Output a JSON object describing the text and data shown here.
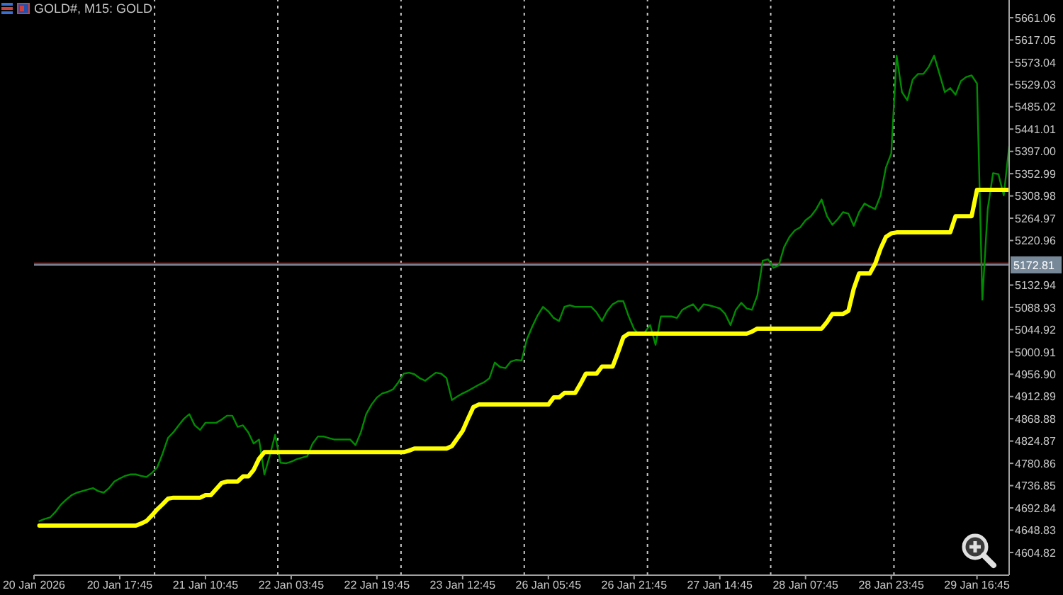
{
  "chart_data": {
    "type": "line",
    "title": "GOLD#, M15: GOLD",
    "categories": [
      "20 Jan 2026",
      null,
      null,
      null,
      null,
      null,
      null,
      null,
      null,
      null,
      null,
      null,
      null,
      null,
      null,
      null,
      "20 Jan 17:45",
      null,
      null,
      null,
      null,
      null,
      null,
      null,
      null,
      null,
      null,
      null,
      null,
      null,
      null,
      null,
      "21 Jan 10:45",
      null,
      null,
      null,
      null,
      null,
      null,
      null,
      null,
      null,
      null,
      null,
      null,
      null,
      null,
      null,
      "22 Jan 03:45",
      null,
      null,
      null,
      null,
      null,
      null,
      null,
      null,
      null,
      null,
      null,
      null,
      null,
      null,
      null,
      "22 Jan 19:45",
      null,
      null,
      null,
      null,
      null,
      null,
      null,
      null,
      null,
      null,
      null,
      null,
      null,
      null,
      null,
      "23 Jan 12:45",
      null,
      null,
      null,
      null,
      null,
      null,
      null,
      null,
      null,
      null,
      null,
      null,
      null,
      null,
      null,
      "26 Jan 05:45",
      null,
      null,
      null,
      null,
      null,
      null,
      null,
      null,
      null,
      null,
      null,
      null,
      null,
      null,
      null,
      "26 Jan 21:45",
      null,
      null,
      null,
      null,
      null,
      null,
      null,
      null,
      null,
      null,
      null,
      null,
      null,
      null,
      null,
      "27 Jan 14:45",
      null,
      null,
      null,
      null,
      null,
      null,
      null,
      null,
      null,
      null,
      null,
      null,
      null,
      null,
      null,
      "28 Jan 07:45",
      null,
      null,
      null,
      null,
      null,
      null,
      null,
      null,
      null,
      null,
      null,
      null,
      null,
      null,
      null,
      "28 Jan 23:45",
      null,
      null,
      null,
      null,
      null,
      null,
      null,
      null,
      null,
      null,
      null,
      null,
      null,
      null,
      null,
      "29 Jan 16:45",
      null,
      null,
      null,
      null,
      null,
      null
    ],
    "ylim": [
      4560,
      5696
    ],
    "yticks": [
      5661.06,
      5617.05,
      5573.04,
      5529.03,
      5485.02,
      5441.01,
      {
        "value": 5397,
        "label": "5397.00"
      },
      5352.99,
      5308.98,
      5264.97,
      5220.96,
      5132.94,
      5088.93,
      5044.92,
      5000.91,
      {
        "value": 4956.9,
        "label": "4956.90"
      },
      4912.89,
      4868.88,
      4824.87,
      4780.86,
      4736.85,
      4692.84,
      4648.83,
      4604.82
    ],
    "series": [
      {
        "color": "#008c00",
        "values": [
          null,
          4667,
          4671,
          4674,
          4685,
          4699,
          4709,
          4718,
          4723,
          4726,
          4729,
          4732,
          4726,
          4723,
          4732,
          4745,
          4751,
          4756,
          4759,
          4759,
          4756,
          4754,
          4762,
          4773,
          4800,
          4831,
          4842,
          4856,
          4869,
          4878,
          4856,
          4847,
          4861,
          4861,
          4861,
          4867,
          4875,
          4875,
          4853,
          4856,
          4842,
          4820,
          4828,
          4759,
          4796,
          4837,
          4782,
          4781,
          4784,
          4789,
          4792,
          4795,
          4820,
          4834,
          4834,
          4831,
          4828,
          4828,
          4828,
          4828,
          4817,
          4842,
          4878,
          4897,
          4911,
          4919,
          4922,
          4927,
          4941,
          4958,
          4960,
          4957,
          4949,
          4944,
          4952,
          4960,
          4958,
          4949,
          4906,
          4913,
          4919,
          4924,
          4930,
          4936,
          4941,
          4949,
          4980,
          4971,
          4969,
          4982,
          4985,
          4984,
          5026,
          5051,
          5073,
          5090,
          5081,
          5068,
          5062,
          5090,
          5093,
          5090,
          5090,
          5090,
          5090,
          5079,
          5062,
          5082,
          5095,
          5101,
          5101,
          5071,
          5046,
          5035,
          5040,
          5054,
          5015,
          5071,
          5071,
          5071,
          5068,
          5084,
          5090,
          5095,
          5082,
          5095,
          5093,
          5090,
          5087,
          5076,
          5054,
          5084,
          5098,
          5087,
          5084,
          5112,
          5181,
          5184,
          5167,
          5172,
          5208,
          5228,
          5241,
          5247,
          5261,
          5269,
          5283,
          5302,
          5269,
          5252,
          5263,
          5277,
          5274,
          5250,
          5277,
          5294,
          5288,
          5283,
          5310,
          5365,
          5393,
          5586,
          5514,
          5498,
          5539,
          5550,
          5550,
          5564,
          5586,
          5550,
          5514,
          5522,
          5509,
          5536,
          5544,
          5547,
          5531,
          5104,
          5283,
          5354,
          5352,
          5310,
          5407
        ]
      },
      {
        "color": "#ffff00",
        "values": [
          null,
          4658,
          4658,
          4658,
          4658,
          4658,
          4658,
          4658,
          4658,
          4658,
          4658,
          4658,
          4658,
          4658,
          4658,
          4658,
          4658,
          4658,
          4658,
          4658,
          4662,
          4667,
          4678,
          4690,
          4700,
          4711,
          4713,
          4713,
          4713,
          4713,
          4713,
          4713,
          4718,
          4718,
          4730,
          4742,
          4745,
          4745,
          4745,
          4755,
          4755,
          4768,
          4790,
          4803,
          4803,
          4803,
          4803,
          4803,
          4803,
          4803,
          4803,
          4803,
          4803,
          4803,
          4803,
          4803,
          4803,
          4803,
          4803,
          4803,
          4803,
          4803,
          4803,
          4803,
          4803,
          4803,
          4803,
          4803,
          4803,
          4803,
          4806,
          4810,
          4810,
          4810,
          4810,
          4810,
          4810,
          4810,
          4815,
          4830,
          4845,
          4869,
          4892,
          4897,
          4897,
          4897,
          4897,
          4897,
          4897,
          4897,
          4897,
          4897,
          4897,
          4897,
          4897,
          4897,
          4897,
          4911,
          4911,
          4920,
          4920,
          4920,
          4938,
          4958,
          4958,
          4958,
          4972,
          4972,
          4972,
          5000,
          5030,
          5037,
          5037,
          5037,
          5037,
          5037,
          5037,
          5037,
          5037,
          5037,
          5037,
          5037,
          5037,
          5037,
          5037,
          5037,
          5037,
          5037,
          5037,
          5037,
          5037,
          5037,
          5037,
          5037,
          5041,
          5047,
          5047,
          5047,
          5047,
          5047,
          5047,
          5047,
          5047,
          5047,
          5047,
          5047,
          5047,
          5047,
          5060,
          5076,
          5076,
          5076,
          5082,
          5126,
          5156,
          5156,
          5156,
          5175,
          5205,
          5228,
          5235,
          5237,
          5237,
          5237,
          5237,
          5237,
          5237,
          5237,
          5237,
          5237,
          5237,
          5237,
          5269,
          5269,
          5269,
          5269,
          5321,
          5321,
          5321,
          5321,
          5321,
          5321,
          5321
        ]
      }
    ],
    "ref_lines": [
      {
        "axis": "y",
        "value": 5176,
        "color": "#b22222",
        "line_style": "solid"
      },
      {
        "axis": "y",
        "value": 5172.81,
        "label": "5172.81",
        "color": "#778899",
        "line_style": "solid"
      }
    ]
  }
}
